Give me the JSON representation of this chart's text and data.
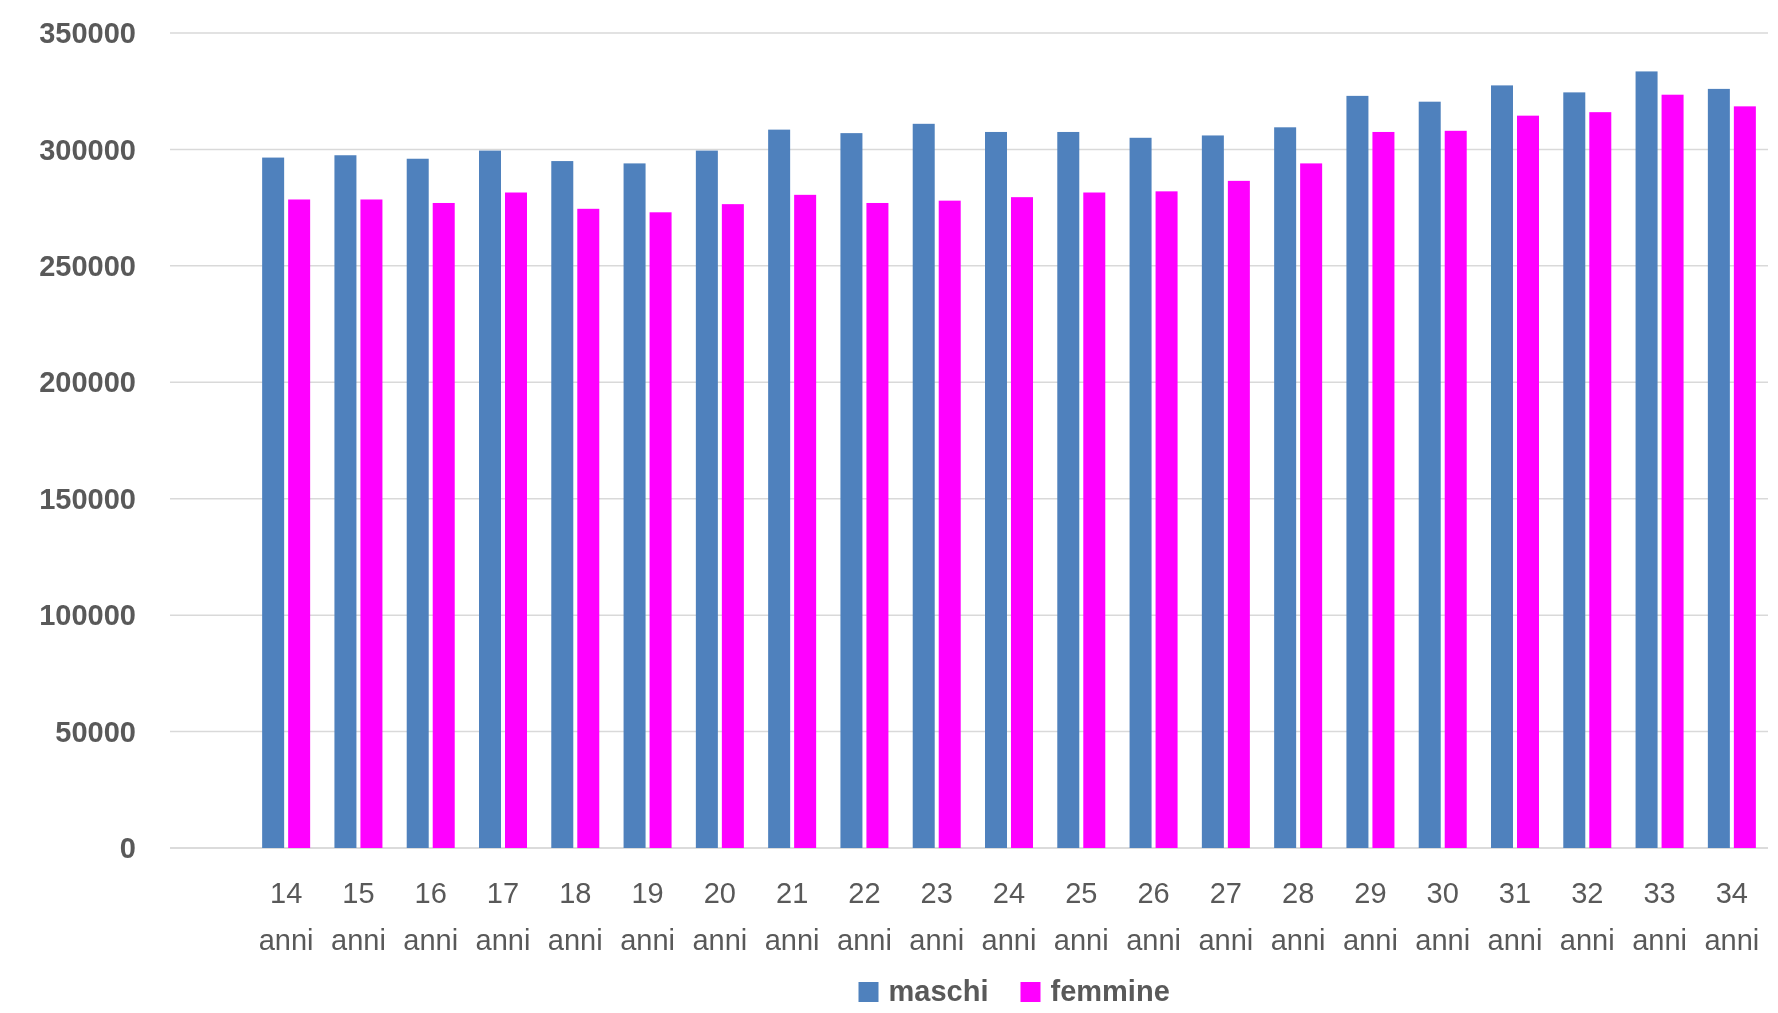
{
  "chart_data": {
    "type": "bar",
    "categories": [
      "14 anni",
      "15 anni",
      "16 anni",
      "17 anni",
      "18 anni",
      "19 anni",
      "20 anni",
      "21 anni",
      "22 anni",
      "23 anni",
      "24 anni",
      "25 anni",
      "26 anni",
      "27 anni",
      "28 anni",
      "29 anni",
      "30 anni",
      "31 anni",
      "32 anni",
      "33 anni",
      "34 anni"
    ],
    "series": [
      {
        "name": "maschi",
        "color": "#4f81bd",
        "values": [
          296500,
          297500,
          296000,
          299500,
          295000,
          294000,
          299500,
          308500,
          307000,
          311000,
          307500,
          307500,
          305000,
          306000,
          309500,
          323000,
          320500,
          327500,
          324500,
          333500,
          326000
        ]
      },
      {
        "name": "femmine",
        "color": "#ff00ff",
        "values": [
          278500,
          278500,
          277000,
          281500,
          274500,
          273000,
          276500,
          280500,
          277000,
          278000,
          279500,
          281500,
          282000,
          286500,
          294000,
          307500,
          308000,
          314500,
          316000,
          323500,
          318500
        ]
      }
    ],
    "ylim": [
      0,
      350000
    ],
    "yticks": [
      0,
      50000,
      100000,
      150000,
      200000,
      250000,
      300000,
      350000
    ],
    "grid": "y",
    "legend": "bottom"
  }
}
